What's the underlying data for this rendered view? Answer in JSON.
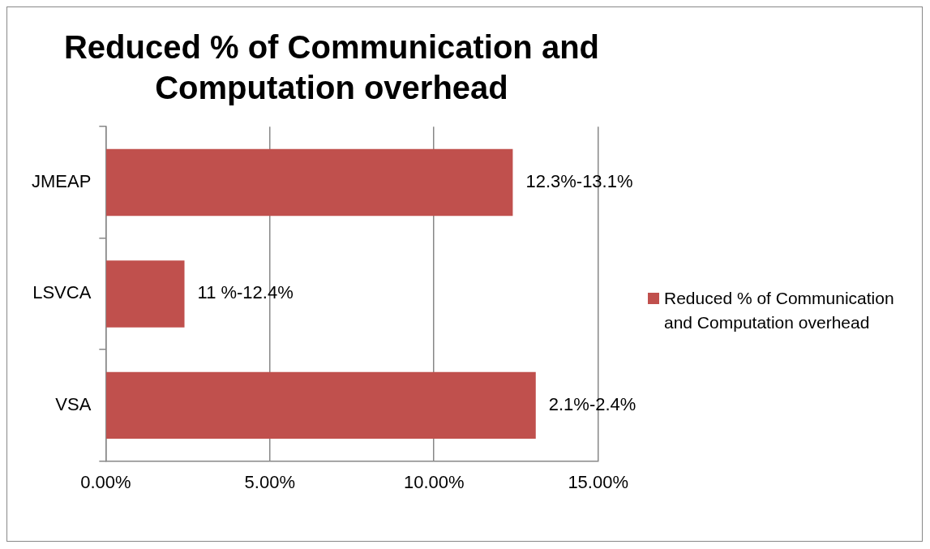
{
  "chart_data": {
    "type": "bar",
    "orientation": "horizontal",
    "title": "Reduced % of Communication and Computation overhead",
    "categories": [
      "JMEAP",
      "LSVCA",
      "VSA"
    ],
    "series": [
      {
        "name": "Reduced % of Communication and Computation overhead",
        "color": "#c0504d",
        "values": [
          12.4,
          2.4,
          13.1
        ]
      }
    ],
    "annotations": [
      "12.3%-13.1%",
      "11 %-12.4%",
      "2.1%-2.4%"
    ],
    "xlim": [
      0,
      15
    ],
    "xticks": [
      {
        "value": 0,
        "label": "0.00%"
      },
      {
        "value": 5,
        "label": "5.00%"
      },
      {
        "value": 10,
        "label": "10.00%"
      },
      {
        "value": 15,
        "label": "15.00%"
      }
    ],
    "grid": "x",
    "legend": "right"
  }
}
